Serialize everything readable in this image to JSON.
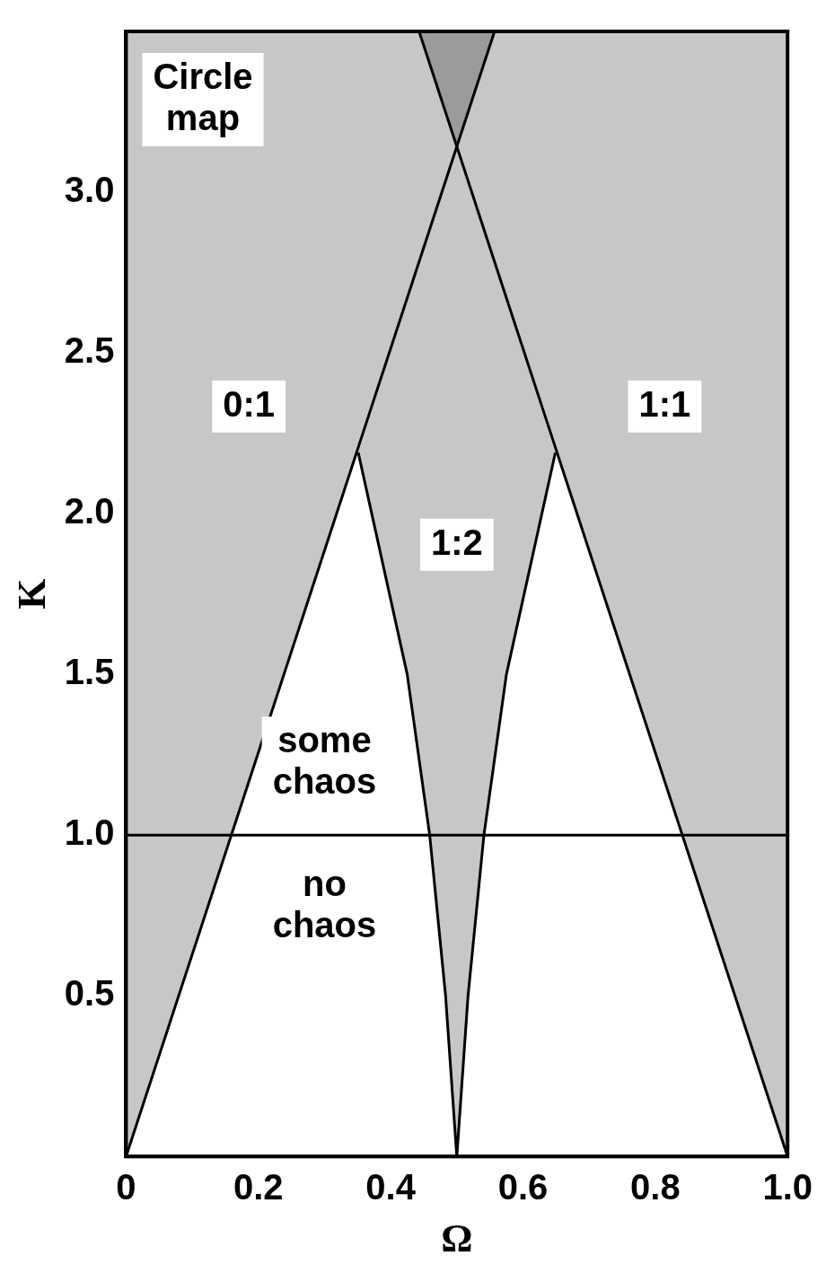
{
  "chart_data": {
    "type": "line",
    "xlabel": "Ω",
    "ylabel": "K",
    "xlim": [
      0,
      1
    ],
    "ylim": [
      0,
      3.5
    ],
    "xticks": [
      0,
      0.2,
      0.4,
      0.6,
      0.8,
      {
        "value": 1,
        "label": "1.0"
      }
    ],
    "yticks": [
      0.5,
      {
        "value": 1,
        "label": "1.0"
      },
      1.5,
      {
        "value": 2,
        "label": "2.0"
      },
      2.5,
      {
        "value": 3,
        "label": "3.0"
      }
    ],
    "series": [
      {
        "name": "0:1",
        "color": "#000000",
        "x": [
          0,
          0.557
        ],
        "values": [
          0,
          3.5
        ],
        "lower": [
          0,
          3.5
        ],
        "upper": [
          3.5,
          3.5
        ]
      },
      {
        "name": "1:1",
        "color": "#000000",
        "x": [
          0.443,
          1
        ],
        "values": [
          3.5,
          0
        ],
        "lower": [
          3.5,
          0
        ],
        "upper": [
          3.5,
          3.5
        ]
      },
      {
        "name": "1:2",
        "color": "#000000",
        "x": [
          0.351,
          0.425,
          0.459,
          0.483,
          0.5,
          0.517,
          0.541,
          0.575,
          0.649
        ],
        "values": [
          2.19,
          1.5,
          1,
          0.5,
          0,
          0.5,
          1,
          1.5,
          2.19
        ],
        "lower": [
          2.19,
          1.5,
          1,
          0.5,
          0,
          0.5,
          1,
          1.5,
          2.19
        ],
        "upper": [
          2.19,
          2.66,
          2.88,
          3.03,
          3.14,
          3.03,
          2.88,
          2.66,
          2.19
        ]
      }
    ],
    "ref_lines": [
      {
        "axis": "y",
        "value": 1,
        "color": "#000000"
      }
    ],
    "annotations": [
      "Circle map",
      "some chaos",
      "no chaos"
    ]
  }
}
